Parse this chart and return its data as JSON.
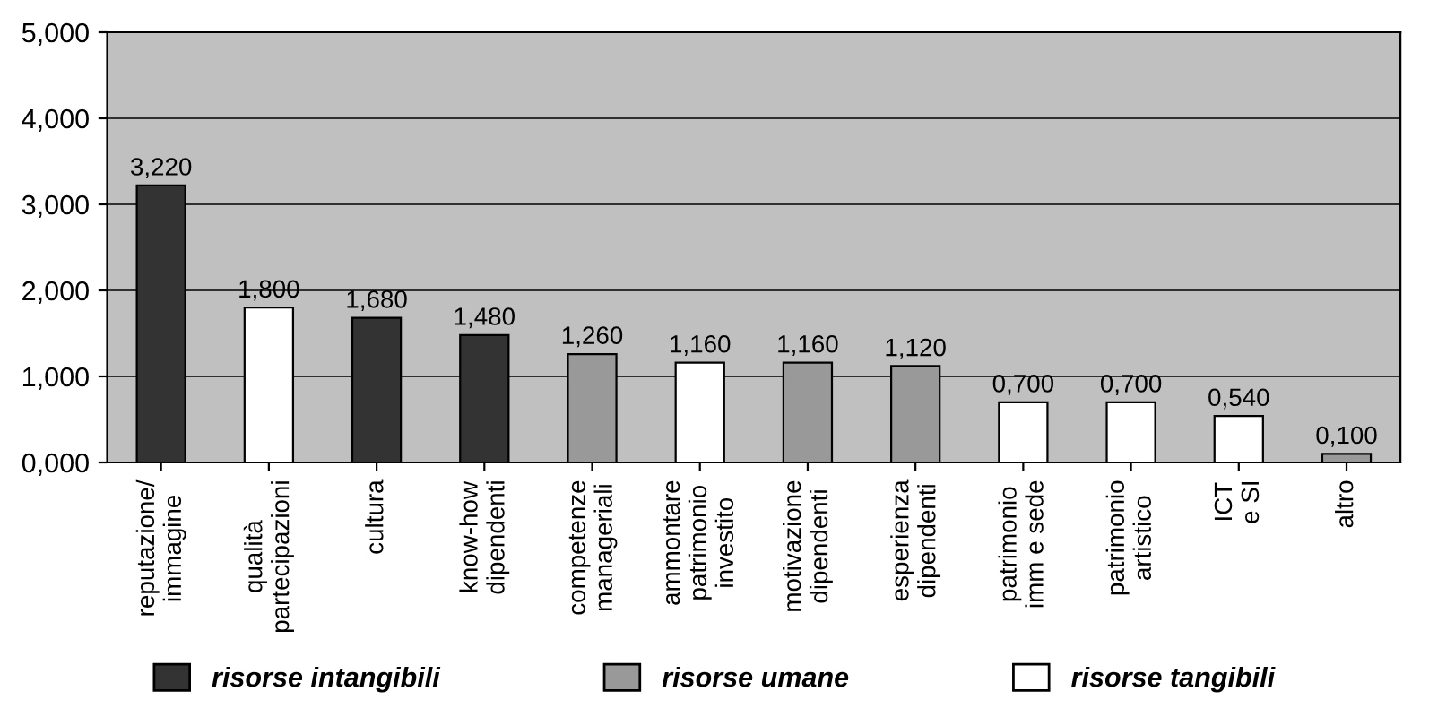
{
  "chart_data": {
    "type": "bar",
    "categories": [
      "reputazione/\nimmagine",
      "qualità\npartecipazioni",
      "cultura",
      "know-how\ndipendenti",
      "competenze\nmanageriali",
      "ammontare\npatrimonio\ninvestito",
      "motivazione\ndipendenti",
      "esperienza\ndipendenti",
      "patrimonio\nimm e sede",
      "patrimonio\nartistico",
      "ICT\ne SI",
      "altro"
    ],
    "series": [
      {
        "name": "risorse intangibili",
        "color": "#333333",
        "values": [
          3.22,
          null,
          1.68,
          1.48,
          null,
          null,
          null,
          null,
          null,
          null,
          null,
          null
        ],
        "value_labels": [
          "3,220",
          null,
          "1,680",
          "1,480",
          null,
          null,
          null,
          null,
          null,
          null,
          null,
          null
        ]
      },
      {
        "name": "risorse umane",
        "color": "#999999",
        "values": [
          null,
          null,
          null,
          null,
          1.26,
          null,
          1.16,
          1.12,
          null,
          null,
          null,
          0.1
        ],
        "value_labels": [
          null,
          null,
          null,
          null,
          "1,260",
          null,
          "1,160",
          "1,120",
          null,
          null,
          null,
          "0,100"
        ]
      },
      {
        "name": "risorse tangibili",
        "color": "#ffffff",
        "values": [
          null,
          1.8,
          null,
          null,
          null,
          1.16,
          null,
          null,
          0.7,
          0.7,
          0.54,
          null
        ],
        "value_labels": [
          null,
          "1,800",
          null,
          null,
          null,
          "1,160",
          null,
          null,
          "0,700",
          "0,700",
          "0,540",
          null
        ]
      }
    ],
    "ylim": [
      0,
      5
    ],
    "yticks": [
      {
        "value": 0,
        "label": "0,000"
      },
      {
        "value": 1,
        "label": "1,000"
      },
      {
        "value": 2,
        "label": "2,000"
      },
      {
        "value": 3,
        "label": "3,000"
      },
      {
        "value": 4,
        "label": "4,000"
      },
      {
        "value": 5,
        "label": "5,000"
      }
    ],
    "grid": "y",
    "legend": "bottom"
  }
}
